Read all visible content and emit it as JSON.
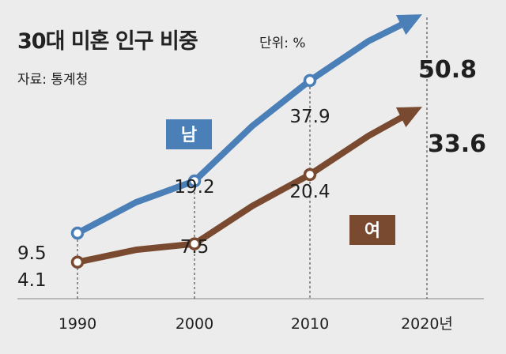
{
  "header": {
    "title": "30대 미혼 인구 비중",
    "unit": "단위: %",
    "source": "자료: 통계청"
  },
  "chart_data": {
    "type": "line",
    "title": "30대 미혼 인구 비중",
    "x": [
      "1990",
      "2000",
      "2010",
      "2020년"
    ],
    "series": [
      {
        "name": "남",
        "values": [
          9.5,
          19.2,
          37.9,
          50.8
        ],
        "color": "#4a7fb8"
      },
      {
        "name": "여",
        "values": [
          4.1,
          7.5,
          20.4,
          33.6
        ],
        "color": "#7a4a30"
      }
    ],
    "data_labels": {
      "남": [
        "9.5",
        "19.2",
        "37.9",
        "50.8"
      ],
      "여": [
        "4.1",
        "7.5",
        "20.4",
        "33.6"
      ]
    },
    "grid": false
  }
}
